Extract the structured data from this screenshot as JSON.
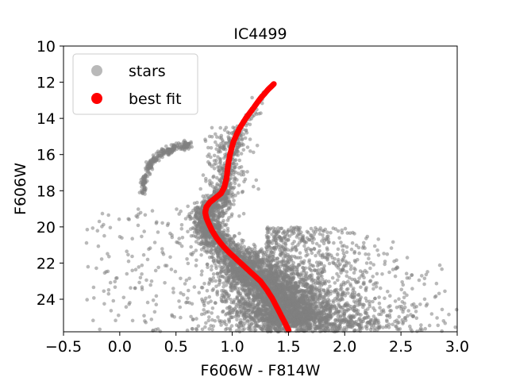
{
  "chart_data": {
    "type": "scatter",
    "title": "IC4499",
    "xlabel": "F606W - F814W",
    "ylabel": "F606W",
    "xlim": [
      -0.5,
      3.0
    ],
    "ylim": [
      25.8,
      10
    ],
    "y_inverted": true,
    "xticks": [
      -0.5,
      0.0,
      0.5,
      1.0,
      1.5,
      2.0,
      2.5,
      3.0
    ],
    "xtick_labels": [
      "−0.5",
      "0.0",
      "0.5",
      "1.0",
      "1.5",
      "2.0",
      "2.5",
      "3.0"
    ],
    "yticks": [
      10,
      12,
      14,
      16,
      18,
      20,
      22,
      24
    ],
    "ytick_labels": [
      "10",
      "12",
      "14",
      "16",
      "18",
      "20",
      "22",
      "24"
    ],
    "grid": false,
    "legend_position": "top-left",
    "series": [
      {
        "name": "stars",
        "color": "#808080",
        "opacity": 0.55,
        "features": {
          "horizontal_branch": [
            [
              0.2,
              18.2
            ],
            [
              0.22,
              17.4
            ],
            [
              0.25,
              16.8
            ],
            [
              0.3,
              16.3
            ],
            [
              0.35,
              16.0
            ],
            [
              0.42,
              15.8
            ],
            [
              0.5,
              15.6
            ],
            [
              0.58,
              15.5
            ],
            [
              0.62,
              15.4
            ]
          ],
          "main_sequence_ridge": [
            [
              1.37,
              12.1
            ],
            [
              1.2,
              13.5
            ],
            [
              1.05,
              15.0
            ],
            [
              0.97,
              16.5
            ],
            [
              0.93,
              18.0
            ],
            [
              0.85,
              18.6
            ],
            [
              0.78,
              19.0
            ],
            [
              0.76,
              19.5
            ],
            [
              0.8,
              20.2
            ],
            [
              0.9,
              21.0
            ],
            [
              1.05,
              22.0
            ],
            [
              1.2,
              22.8
            ],
            [
              1.32,
              23.5
            ],
            [
              1.42,
              24.5
            ],
            [
              1.5,
              25.3
            ]
          ],
          "field_star_color_range": [
            -0.3,
            3.0
          ],
          "field_star_mag_range": [
            17.0,
            25.8
          ]
        }
      },
      {
        "name": "best fit",
        "color": "#ff0000",
        "points": [
          [
            1.37,
            12.1
          ],
          [
            1.32,
            12.4
          ],
          [
            1.25,
            12.9
          ],
          [
            1.18,
            13.5
          ],
          [
            1.12,
            14.0
          ],
          [
            1.06,
            14.6
          ],
          [
            1.01,
            15.3
          ],
          [
            0.98,
            16.0
          ],
          [
            0.96,
            16.7
          ],
          [
            0.95,
            17.3
          ],
          [
            0.93,
            17.8
          ],
          [
            0.9,
            18.15
          ],
          [
            0.85,
            18.4
          ],
          [
            0.8,
            18.65
          ],
          [
            0.77,
            18.9
          ],
          [
            0.76,
            19.2
          ],
          [
            0.77,
            19.5
          ],
          [
            0.79,
            19.8
          ],
          [
            0.82,
            20.2
          ],
          [
            0.86,
            20.6
          ],
          [
            0.91,
            21.0
          ],
          [
            0.97,
            21.4
          ],
          [
            1.04,
            21.8
          ],
          [
            1.11,
            22.2
          ],
          [
            1.18,
            22.6
          ],
          [
            1.25,
            23.0
          ],
          [
            1.31,
            23.5
          ],
          [
            1.36,
            24.0
          ],
          [
            1.41,
            24.6
          ],
          [
            1.46,
            25.2
          ],
          [
            1.5,
            25.7
          ]
        ]
      }
    ]
  }
}
